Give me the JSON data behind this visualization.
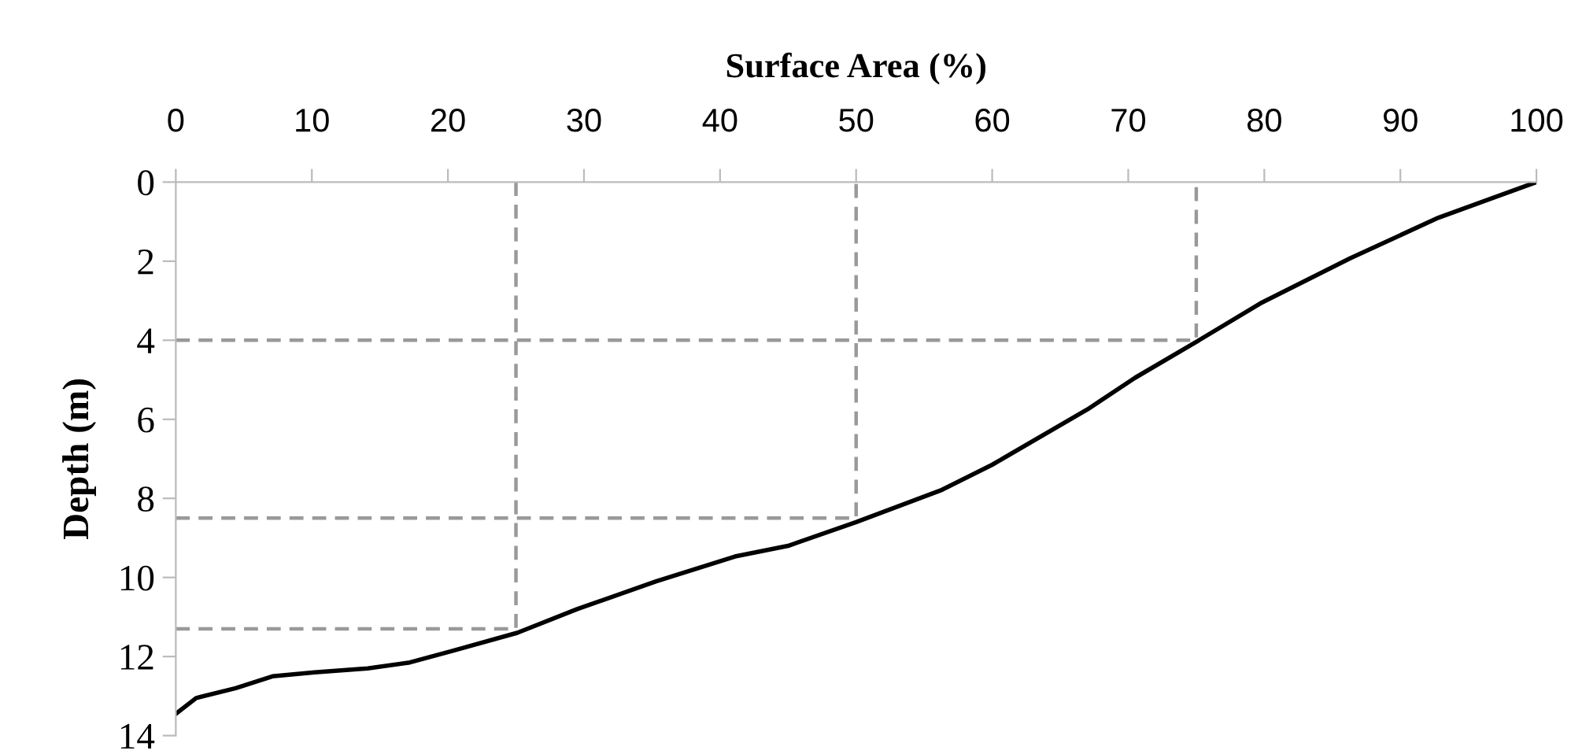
{
  "chart_data": {
    "type": "line",
    "xlabel": "Surface Area (%)",
    "ylabel": "Depth (m)",
    "xlim": [
      0,
      100
    ],
    "xticks": [
      0,
      10,
      20,
      30,
      40,
      50,
      60,
      70,
      80,
      90,
      100
    ],
    "ylim": [
      14,
      0
    ],
    "yticks": [
      0,
      2,
      4,
      6,
      8,
      10,
      12,
      14
    ],
    "grid": false,
    "legend": false,
    "marker": "none",
    "series": [
      {
        "color": "#000000",
        "line_style": "solid",
        "x": [
          0,
          1.5,
          4.4,
          7.1,
          10.2,
          14.1,
          17.2,
          20.3,
          25.1,
          29.5,
          35.3,
          41.1,
          45,
          50,
          56.2,
          60,
          67,
          70.5,
          75.1,
          79.7,
          86.3,
          92.8,
          100
        ],
        "values": [
          13.45,
          13.05,
          12.8,
          12.5,
          12.4,
          12.3,
          12.15,
          11.86,
          11.4,
          10.8,
          10.1,
          9.47,
          9.2,
          8.6,
          7.8,
          7.15,
          5.75,
          4.95,
          4.02,
          3.07,
          1.93,
          0.9,
          0
        ]
      },
      {
        "color": "#999999",
        "line_style": "dashed",
        "x": [
          0,
          75,
          75
        ],
        "values": [
          4,
          4,
          0
        ]
      },
      {
        "color": "#999999",
        "line_style": "dashed",
        "x": [
          0,
          50,
          50
        ],
        "values": [
          8.5,
          8.5,
          0
        ]
      },
      {
        "color": "#999999",
        "line_style": "dashed",
        "x": [
          0,
          25,
          25
        ],
        "values": [
          11.3,
          11.3,
          0
        ]
      }
    ]
  }
}
